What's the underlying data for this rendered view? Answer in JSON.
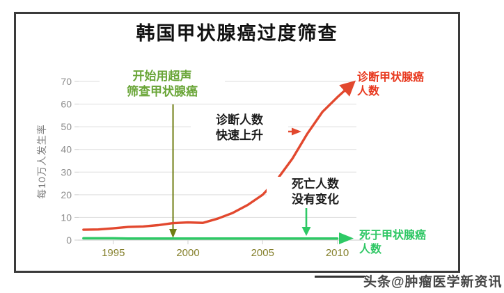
{
  "title": "韩国甲状腺癌过度筛查",
  "y_axis": {
    "label": "每10万人发生率",
    "ticks": [
      0,
      10,
      20,
      30,
      40,
      50,
      60,
      70
    ]
  },
  "x_axis": {
    "ticks": [
      1995,
      2000,
      2005,
      2010
    ]
  },
  "annotations": {
    "screening_note": "开始用超声\n筛查甲状腺癌",
    "diagnosis_note": "诊断人数\n快速上升",
    "death_note": "死亡人数\n没有变化",
    "diagnosed_label": "诊断甲状腺癌\n人数",
    "death_label": "死于甲状腺癌\n人数"
  },
  "watermark": "头条@肿瘤医学新资讯",
  "colors": {
    "diagnosed_line": "#e2482e",
    "diagnosed_label": "#e8391f",
    "death_line": "#2ec965",
    "death_label": "#2fc765",
    "screening_marker": "#6f7d12",
    "screening_note": "#69a537",
    "gridline": "#dedede",
    "axis_tick_text": "#8c8c8c",
    "year_tick_text": "#85802c",
    "card_border": "#3a3a3a"
  },
  "chart_data": {
    "type": "line",
    "title": "韩国甲状腺癌过度筛查",
    "xlabel": "",
    "ylabel": "每10万人发生率",
    "x": [
      1993,
      1994,
      1995,
      1996,
      1997,
      1998,
      1999,
      2000,
      2001,
      2002,
      2003,
      2004,
      2005,
      2006,
      2007,
      2008,
      2009,
      2010,
      2011
    ],
    "series": [
      {
        "name": "诊断甲状腺癌人数",
        "color": "#e2482e",
        "values": [
          4.6,
          4.7,
          5.2,
          5.8,
          6.0,
          6.6,
          7.5,
          7.8,
          7.6,
          9.5,
          12.0,
          15.5,
          20.0,
          27.0,
          36.0,
          47.0,
          56.5,
          63.0,
          69.0
        ]
      },
      {
        "name": "死于甲状腺癌人数",
        "color": "#2ec965",
        "values": [
          0.8,
          0.8,
          0.8,
          0.7,
          0.7,
          0.7,
          0.7,
          0.7,
          0.7,
          0.7,
          0.7,
          0.7,
          0.7,
          0.7,
          0.7,
          0.7,
          0.7,
          0.7,
          0.7
        ]
      }
    ],
    "xlim": [
      1993,
      2011
    ],
    "ylim": [
      0,
      70
    ],
    "grid": true,
    "legend_position": "inline-right",
    "screening_start_year": 1999
  }
}
